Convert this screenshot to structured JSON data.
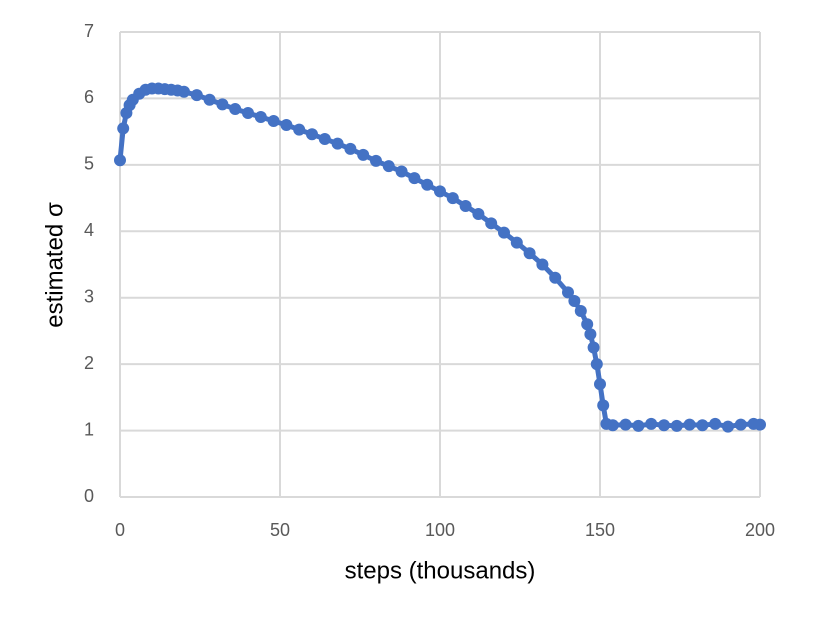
{
  "chart_data": {
    "type": "line",
    "xlabel": "steps (thousands)",
    "ylabel": "estimated σ",
    "x": [
      0,
      1,
      2,
      3,
      4,
      6,
      8,
      10,
      12,
      14,
      16,
      18,
      20,
      24,
      28,
      32,
      36,
      40,
      44,
      48,
      52,
      56,
      60,
      64,
      68,
      72,
      76,
      80,
      84,
      88,
      92,
      96,
      100,
      104,
      108,
      112,
      116,
      120,
      124,
      128,
      132,
      136,
      140,
      142,
      144,
      146,
      147,
      148,
      149,
      150,
      151,
      152,
      154,
      158,
      162,
      166,
      170,
      174,
      178,
      182,
      186,
      190,
      194,
      198,
      200
    ],
    "series": [
      {
        "color": "#4472c4",
        "values": [
          5.07,
          5.55,
          5.78,
          5.9,
          5.98,
          6.07,
          6.13,
          6.15,
          6.15,
          6.14,
          6.13,
          6.12,
          6.1,
          6.05,
          5.98,
          5.91,
          5.84,
          5.78,
          5.72,
          5.66,
          5.6,
          5.53,
          5.46,
          5.39,
          5.32,
          5.24,
          5.15,
          5.06,
          4.98,
          4.9,
          4.8,
          4.7,
          4.6,
          4.5,
          4.38,
          4.26,
          4.12,
          3.98,
          3.83,
          3.67,
          3.5,
          3.3,
          3.08,
          2.95,
          2.8,
          2.6,
          2.45,
          2.25,
          2.0,
          1.7,
          1.38,
          1.1,
          1.08,
          1.09,
          1.07,
          1.1,
          1.08,
          1.07,
          1.09,
          1.08,
          1.1,
          1.06,
          1.09,
          1.1,
          1.09
        ]
      }
    ],
    "xlim": [
      0,
      200
    ],
    "xticks": [
      0,
      50,
      100,
      150,
      200
    ],
    "ylim": [
      0,
      7
    ],
    "yticks": [
      0,
      1,
      2,
      3,
      4,
      5,
      6,
      7
    ],
    "grid": true
  }
}
